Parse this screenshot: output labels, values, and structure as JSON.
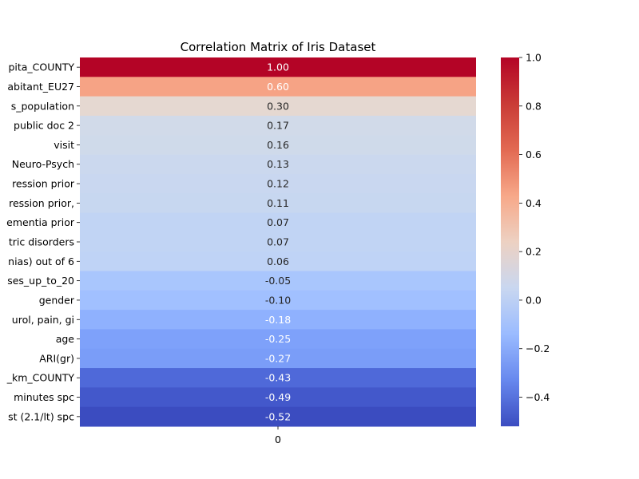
{
  "chart_data": {
    "type": "heatmap",
    "title": "Correlation Matrix of Iris Dataset",
    "columns": [
      "0"
    ],
    "rows": [
      {
        "label": "pita_COUNTY",
        "value": 1.0,
        "text": "1.00",
        "color": "#b40426"
      },
      {
        "label": "abitant_EU27",
        "value": 0.6,
        "text": "0.60",
        "color": "#f6a385"
      },
      {
        "label": "s_population",
        "value": 0.3,
        "text": "0.30",
        "color": "#e5d8d1"
      },
      {
        "label": "public doc 2",
        "value": 0.17,
        "text": "0.17",
        "color": "#d1dae9"
      },
      {
        "label": "visit",
        "value": 0.16,
        "text": "0.16",
        "color": "#cfdaea"
      },
      {
        "label": "Neuro-Psych",
        "value": 0.13,
        "text": "0.13",
        "color": "#cbd8ee"
      },
      {
        "label": "ression prior",
        "value": 0.12,
        "text": "0.12",
        "color": "#c9d7f0"
      },
      {
        "label": "ression prior, ",
        "value": 0.11,
        "text": "0.11",
        "color": "#c7d7f0"
      },
      {
        "label": "ementia prior",
        "value": 0.07,
        "text": "0.07",
        "color": "#c1d4f4"
      },
      {
        "label": "tric disorders",
        "value": 0.07,
        "text": "0.07",
        "color": "#c1d4f4"
      },
      {
        "label": "nias)  out of 6",
        "value": 0.06,
        "text": "0.06",
        "color": "#bfd3f6"
      },
      {
        "label": "ses_up_to_20",
        "value": -0.05,
        "text": "-0.05",
        "color": "#a9c6fd"
      },
      {
        "label": "gender",
        "value": -0.1,
        "text": "-0.10",
        "color": "#a1c0ff"
      },
      {
        "label": "urol, pain, gi",
        "value": -0.18,
        "text": "-0.18",
        "color": "#8fb1fe"
      },
      {
        "label": "age",
        "value": -0.25,
        "text": "-0.25",
        "color": "#7ea1fa"
      },
      {
        "label": "ARI(gr)",
        "value": -0.27,
        "text": "-0.27",
        "color": "#7a9df8"
      },
      {
        "label": "_km_COUNTY",
        "value": -0.43,
        "text": "-0.43",
        "color": "#4f69d9"
      },
      {
        "label": "minutes spc",
        "value": -0.49,
        "text": "-0.49",
        "color": "#4358cb"
      },
      {
        "label": "st (2.1/lt) spc",
        "value": -0.52,
        "text": "-0.52",
        "color": "#3b4cc0"
      }
    ],
    "colorbar": {
      "colormap": "coolwarm",
      "min": -0.52,
      "max": 1.0,
      "ticks": [
        1.0,
        0.8,
        0.6,
        0.4,
        0.2,
        0.0,
        -0.2,
        -0.4
      ],
      "tick_labels": [
        "1.0",
        "0.8",
        "0.6",
        "0.4",
        "0.2",
        "0.0",
        "−0.2",
        "−0.4"
      ],
      "stops": [
        {
          "value": -0.52,
          "color": "#3b4cc0"
        },
        {
          "value": -0.33,
          "color": "#6788ee"
        },
        {
          "value": -0.14,
          "color": "#9abbff"
        },
        {
          "value": 0.05,
          "color": "#c9d7f0"
        },
        {
          "value": 0.24,
          "color": "#edd1c2"
        },
        {
          "value": 0.43,
          "color": "#f7a889"
        },
        {
          "value": 0.62,
          "color": "#e26952"
        },
        {
          "value": 0.81,
          "color": "#c93b36"
        },
        {
          "value": 1.0,
          "color": "#b40426"
        }
      ]
    }
  }
}
